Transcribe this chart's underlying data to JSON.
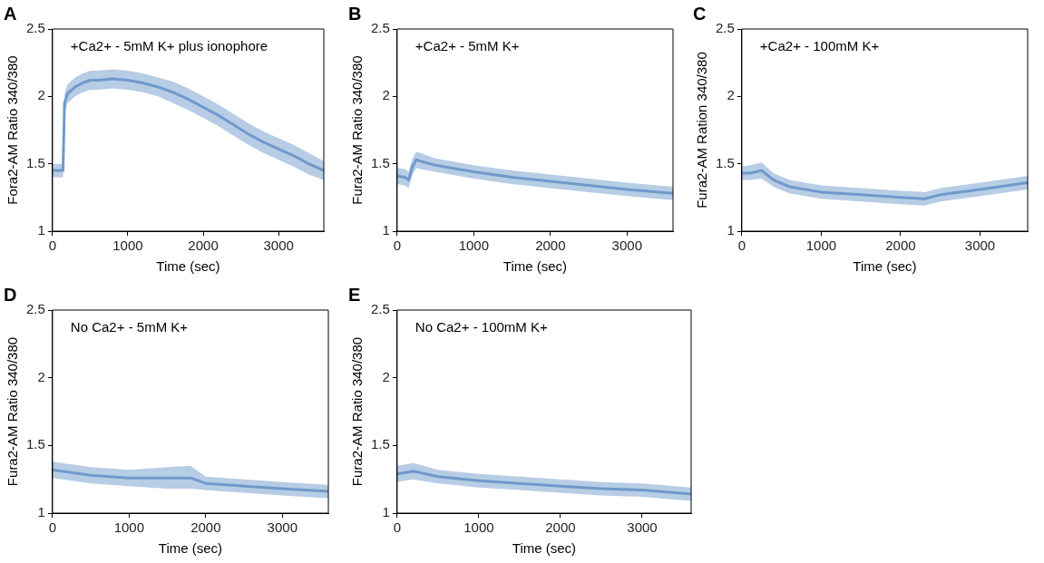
{
  "chart_data": [
    {
      "type": "line",
      "title": "A",
      "xlabel": "Time (sec)",
      "ylabel": "Fora2-AM Ratio 340/380",
      "annotations": [
        "+Ca2+ - 5mM K+ plus ionophore"
      ],
      "xlim": [
        0,
        3600
      ],
      "xticks": [
        0,
        1000,
        2000,
        3000
      ],
      "ylim": [
        1,
        2.5
      ],
      "yticks": [
        1,
        1.5,
        2,
        2.5
      ],
      "grid": false,
      "legend": false,
      "x": [
        0,
        50,
        140,
        160,
        200,
        300,
        400,
        500,
        600,
        800,
        1000,
        1200,
        1400,
        1600,
        1800,
        2000,
        2200,
        2400,
        2600,
        2800,
        3000,
        3200,
        3400,
        3600
      ],
      "series": [
        {
          "color": "#6f99cc",
          "values": [
            1.45,
            1.45,
            1.45,
            1.95,
            2.02,
            2.07,
            2.1,
            2.12,
            2.12,
            2.13,
            2.12,
            2.1,
            2.07,
            2.03,
            1.98,
            1.92,
            1.86,
            1.79,
            1.72,
            1.66,
            1.61,
            1.56,
            1.5,
            1.45
          ],
          "lower": [
            1.4,
            1.4,
            1.4,
            1.88,
            1.95,
            2.0,
            2.03,
            2.05,
            2.05,
            2.06,
            2.05,
            2.03,
            2.0,
            1.95,
            1.9,
            1.84,
            1.78,
            1.71,
            1.64,
            1.58,
            1.53,
            1.48,
            1.42,
            1.38
          ],
          "upper": [
            1.5,
            1.5,
            1.5,
            2.02,
            2.09,
            2.14,
            2.17,
            2.19,
            2.19,
            2.2,
            2.19,
            2.17,
            2.14,
            2.11,
            2.06,
            2.0,
            1.94,
            1.87,
            1.8,
            1.74,
            1.69,
            1.64,
            1.58,
            1.52
          ]
        }
      ]
    },
    {
      "type": "line",
      "title": "B",
      "xlabel": "Time (sec)",
      "ylabel": "Fura2-AM Ratio 340/380",
      "annotations": [
        "+Ca2+ - 5mM K+"
      ],
      "xlim": [
        0,
        3600
      ],
      "xticks": [
        0,
        1000,
        2000,
        3000
      ],
      "ylim": [
        1,
        2.5
      ],
      "yticks": [
        1,
        1.5,
        2,
        2.5
      ],
      "grid": false,
      "legend": false,
      "x": [
        0,
        100,
        150,
        200,
        250,
        300,
        500,
        1000,
        1500,
        2000,
        2500,
        3000,
        3600
      ],
      "series": [
        {
          "color": "#6f99cc",
          "values": [
            1.41,
            1.4,
            1.38,
            1.48,
            1.53,
            1.52,
            1.49,
            1.44,
            1.4,
            1.37,
            1.34,
            1.31,
            1.28
          ],
          "lower": [
            1.35,
            1.34,
            1.32,
            1.42,
            1.47,
            1.46,
            1.44,
            1.39,
            1.35,
            1.32,
            1.29,
            1.26,
            1.23
          ],
          "upper": [
            1.47,
            1.46,
            1.44,
            1.54,
            1.59,
            1.58,
            1.54,
            1.49,
            1.45,
            1.42,
            1.39,
            1.36,
            1.33
          ]
        }
      ]
    },
    {
      "type": "line",
      "title": "C",
      "xlabel": "Time (sec)",
      "ylabel": "Fura2-AM Ration 340/380",
      "annotations": [
        "+Ca2+ - 100mM K+"
      ],
      "xlim": [
        0,
        3600
      ],
      "xticks": [
        0,
        1000,
        2000,
        3000
      ],
      "ylim": [
        1,
        2.5
      ],
      "yticks": [
        1,
        1.5,
        2,
        2.5
      ],
      "grid": false,
      "legend": false,
      "x": [
        0,
        100,
        250,
        400,
        600,
        1000,
        1500,
        2000,
        2300,
        2500,
        3000,
        3600
      ],
      "series": [
        {
          "color": "#6f99cc",
          "values": [
            1.43,
            1.43,
            1.45,
            1.38,
            1.33,
            1.29,
            1.27,
            1.25,
            1.24,
            1.27,
            1.31,
            1.36
          ],
          "lower": [
            1.38,
            1.38,
            1.39,
            1.33,
            1.28,
            1.24,
            1.22,
            1.2,
            1.19,
            1.22,
            1.26,
            1.31
          ],
          "upper": [
            1.48,
            1.49,
            1.51,
            1.43,
            1.38,
            1.34,
            1.32,
            1.3,
            1.29,
            1.32,
            1.36,
            1.41
          ]
        }
      ]
    },
    {
      "type": "line",
      "title": "D",
      "xlabel": "Time (sec)",
      "ylabel": "Fura2-AM Ratio 340/380",
      "annotations": [
        "No Ca2+ - 5mM K+"
      ],
      "xlim": [
        0,
        3600
      ],
      "xticks": [
        0,
        1000,
        2000,
        3000
      ],
      "ylim": [
        1,
        2.5
      ],
      "yticks": [
        1,
        1.5,
        2,
        2.5
      ],
      "grid": false,
      "legend": false,
      "x": [
        0,
        500,
        1000,
        1500,
        1800,
        2000,
        2500,
        3000,
        3600
      ],
      "series": [
        {
          "color": "#6f99cc",
          "values": [
            1.32,
            1.28,
            1.26,
            1.26,
            1.26,
            1.22,
            1.2,
            1.18,
            1.16
          ],
          "lower": [
            1.26,
            1.22,
            1.2,
            1.18,
            1.18,
            1.17,
            1.15,
            1.13,
            1.11
          ],
          "upper": [
            1.38,
            1.34,
            1.32,
            1.34,
            1.35,
            1.27,
            1.25,
            1.23,
            1.21
          ]
        }
      ]
    },
    {
      "type": "line",
      "title": "E",
      "xlabel": "Time (sec)",
      "ylabel": "Fura2-AM Ratio 340/380",
      "annotations": [
        "No Ca2+ - 100mM K+"
      ],
      "xlim": [
        0,
        3600
      ],
      "xticks": [
        0,
        1000,
        2000,
        3000
      ],
      "ylim": [
        1,
        2.5
      ],
      "yticks": [
        1,
        1.5,
        2,
        2.5
      ],
      "grid": false,
      "legend": false,
      "x": [
        0,
        200,
        500,
        1000,
        1500,
        2000,
        2500,
        3000,
        3600
      ],
      "series": [
        {
          "color": "#6f99cc",
          "values": [
            1.29,
            1.31,
            1.27,
            1.24,
            1.22,
            1.2,
            1.18,
            1.17,
            1.14
          ],
          "lower": [
            1.23,
            1.25,
            1.22,
            1.19,
            1.17,
            1.15,
            1.13,
            1.12,
            1.09
          ],
          "upper": [
            1.35,
            1.37,
            1.32,
            1.29,
            1.27,
            1.25,
            1.23,
            1.22,
            1.19
          ]
        }
      ]
    }
  ]
}
